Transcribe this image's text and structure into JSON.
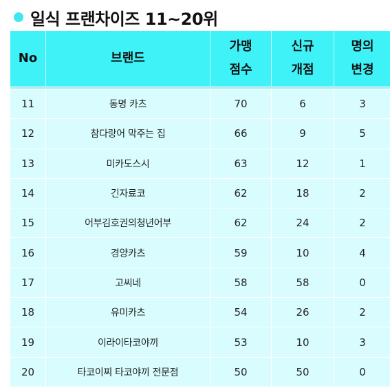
{
  "title": "일식 프랜차이즈 11~20위",
  "colors": {
    "accent": "#3ef2f8",
    "row_bg": "#d9fdfe"
  },
  "headers": {
    "no": "No",
    "brand": "브랜드",
    "score": [
      "가맹",
      "점수"
    ],
    "new_stores": [
      "신규",
      "개점"
    ],
    "name_change": [
      "명의",
      "변경"
    ]
  },
  "rows": [
    {
      "no": "11",
      "brand": "동명 카츠",
      "score": "70",
      "new_stores": "6",
      "name_change": "3"
    },
    {
      "no": "12",
      "brand": "참다랑어 막주는 집",
      "score": "66",
      "new_stores": "9",
      "name_change": "5"
    },
    {
      "no": "13",
      "brand": "미카도스시",
      "score": "63",
      "new_stores": "12",
      "name_change": "1"
    },
    {
      "no": "14",
      "brand": "긴자료코",
      "score": "62",
      "new_stores": "18",
      "name_change": "2"
    },
    {
      "no": "15",
      "brand": "어부김호권의청년어부",
      "score": "62",
      "new_stores": "24",
      "name_change": "2"
    },
    {
      "no": "16",
      "brand": "경양카츠",
      "score": "59",
      "new_stores": "10",
      "name_change": "4"
    },
    {
      "no": "17",
      "brand": "고씨네",
      "score": "58",
      "new_stores": "58",
      "name_change": "0"
    },
    {
      "no": "18",
      "brand": "유미카츠",
      "score": "54",
      "new_stores": "26",
      "name_change": "2"
    },
    {
      "no": "19",
      "brand": "이라이타코야끼",
      "score": "53",
      "new_stores": "10",
      "name_change": "3"
    },
    {
      "no": "20",
      "brand": "타코이찌 타코야끼 전문점",
      "score": "50",
      "new_stores": "50",
      "name_change": "0"
    }
  ]
}
